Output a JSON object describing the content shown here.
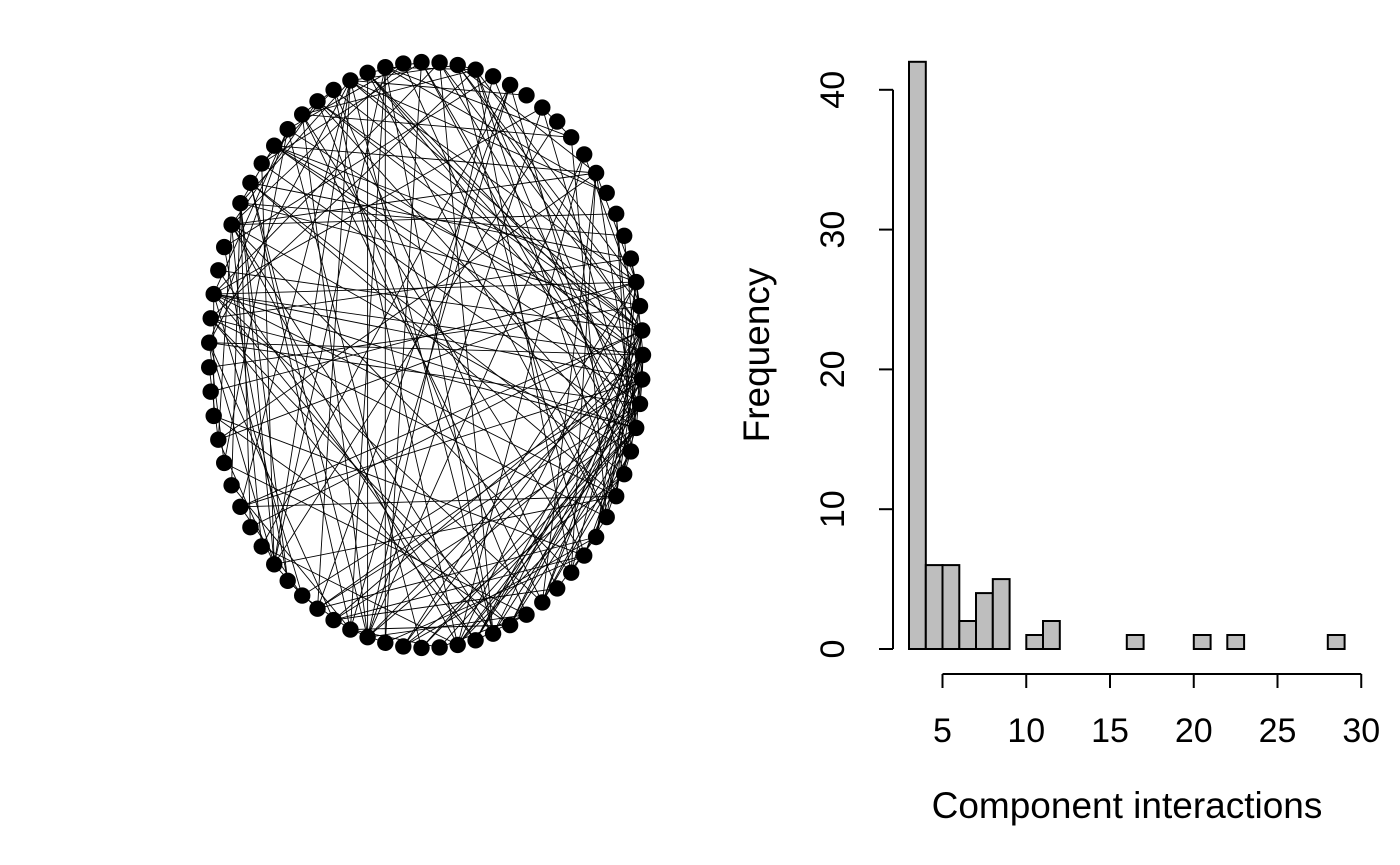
{
  "chart_data": [
    {
      "type": "network",
      "layout": "circle",
      "node_count": 75,
      "edge_count": 220,
      "node_color": "#000000",
      "edge_color": "#000000"
    },
    {
      "type": "histogram",
      "xlabel": "Component interactions",
      "ylabel": "Frequency",
      "bin_width": 1,
      "bins": [
        {
          "from": 3,
          "to": 4,
          "count": 42
        },
        {
          "from": 4,
          "to": 5,
          "count": 6
        },
        {
          "from": 5,
          "to": 6,
          "count": 6
        },
        {
          "from": 6,
          "to": 7,
          "count": 2
        },
        {
          "from": 7,
          "to": 8,
          "count": 4
        },
        {
          "from": 8,
          "to": 9,
          "count": 5
        },
        {
          "from": 9,
          "to": 10,
          "count": 0
        },
        {
          "from": 10,
          "to": 11,
          "count": 1
        },
        {
          "from": 11,
          "to": 12,
          "count": 2
        },
        {
          "from": 12,
          "to": 13,
          "count": 0
        },
        {
          "from": 13,
          "to": 14,
          "count": 0
        },
        {
          "from": 14,
          "to": 15,
          "count": 0
        },
        {
          "from": 15,
          "to": 16,
          "count": 0
        },
        {
          "from": 16,
          "to": 17,
          "count": 1
        },
        {
          "from": 17,
          "to": 18,
          "count": 0
        },
        {
          "from": 18,
          "to": 19,
          "count": 0
        },
        {
          "from": 19,
          "to": 20,
          "count": 0
        },
        {
          "from": 20,
          "to": 21,
          "count": 1
        },
        {
          "from": 21,
          "to": 22,
          "count": 0
        },
        {
          "from": 22,
          "to": 23,
          "count": 1
        },
        {
          "from": 23,
          "to": 24,
          "count": 0
        },
        {
          "from": 24,
          "to": 25,
          "count": 0
        },
        {
          "from": 25,
          "to": 26,
          "count": 0
        },
        {
          "from": 26,
          "to": 27,
          "count": 0
        },
        {
          "from": 27,
          "to": 28,
          "count": 0
        },
        {
          "from": 28,
          "to": 29,
          "count": 1
        }
      ],
      "x_ticks": [
        5,
        10,
        15,
        20,
        25,
        30
      ],
      "y_ticks": [
        0,
        10,
        20,
        30,
        40
      ],
      "xlim": [
        3,
        30
      ],
      "ylim": [
        0,
        42
      ],
      "bar_fill": "#bebebe",
      "bar_stroke": "#000000"
    }
  ]
}
